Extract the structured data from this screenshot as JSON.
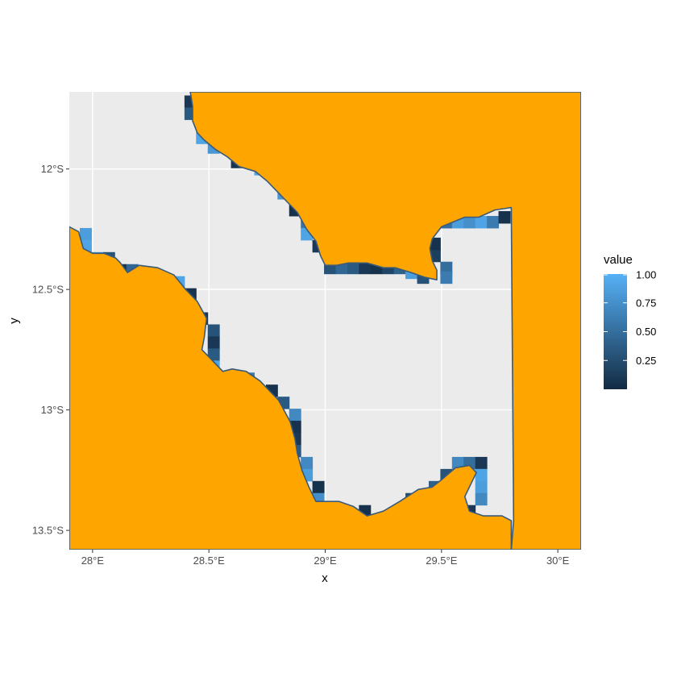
{
  "chart_data": {
    "type": "raster-map",
    "xlabel": "x",
    "ylabel": "y",
    "xlim": [
      27.9,
      30.1
    ],
    "ylim": [
      -13.58,
      -11.68
    ],
    "x_ticks": [
      {
        "value": 28.0,
        "label": "28°E"
      },
      {
        "value": 28.5,
        "label": "28.5°E"
      },
      {
        "value": 29.0,
        "label": "29°E"
      },
      {
        "value": 29.5,
        "label": "29.5°E"
      },
      {
        "value": 30.0,
        "label": "30°E"
      }
    ],
    "y_ticks": [
      {
        "value": -12.0,
        "label": "12°S"
      },
      {
        "value": -12.5,
        "label": "12.5°S"
      },
      {
        "value": -13.0,
        "label": "13°S"
      },
      {
        "value": -13.5,
        "label": "13.5°S"
      }
    ],
    "legend": {
      "title": "value",
      "position": "right",
      "range": [
        0,
        1
      ],
      "ticks": [
        {
          "value": 0.25,
          "label": "0.25"
        },
        {
          "value": 0.5,
          "label": "0.50"
        },
        {
          "value": 0.75,
          "label": "0.75"
        },
        {
          "value": 1.0,
          "label": "1.00"
        }
      ],
      "low_color": "#132B43",
      "high_color": "#56B1F7"
    },
    "colors": {
      "land": "#FFA500",
      "coastline": "#3a5a78",
      "panel": "#EBEBEB",
      "grid": "#FFFFFF",
      "water": "#EEEEEE"
    },
    "land_north": [
      [
        28.42,
        -11.68
      ],
      [
        30.1,
        -11.68
      ],
      [
        30.1,
        -13.58
      ],
      [
        29.8,
        -13.58
      ],
      [
        29.81,
        -13.46
      ],
      [
        29.8,
        -12.16
      ],
      [
        29.73,
        -12.17
      ],
      [
        29.66,
        -12.2
      ],
      [
        29.6,
        -12.2
      ],
      [
        29.55,
        -12.22
      ],
      [
        29.5,
        -12.24
      ],
      [
        29.46,
        -12.29
      ],
      [
        29.45,
        -12.33
      ],
      [
        29.46,
        -12.38
      ],
      [
        29.48,
        -12.42
      ],
      [
        29.48,
        -12.46
      ],
      [
        29.43,
        -12.45
      ],
      [
        29.37,
        -12.43
      ],
      [
        29.3,
        -12.41
      ],
      [
        29.25,
        -12.41
      ],
      [
        29.18,
        -12.39
      ],
      [
        29.1,
        -12.39
      ],
      [
        29.05,
        -12.4
      ],
      [
        29.0,
        -12.4
      ],
      [
        28.98,
        -12.36
      ],
      [
        28.96,
        -12.3
      ],
      [
        28.92,
        -12.25
      ],
      [
        28.88,
        -12.18
      ],
      [
        28.84,
        -12.14
      ],
      [
        28.8,
        -12.1
      ],
      [
        28.75,
        -12.05
      ],
      [
        28.7,
        -12.01
      ],
      [
        28.63,
        -11.99
      ],
      [
        28.58,
        -11.95
      ],
      [
        28.53,
        -11.92
      ],
      [
        28.48,
        -11.88
      ],
      [
        28.45,
        -11.85
      ],
      [
        28.43,
        -11.8
      ],
      [
        28.43,
        -11.74
      ]
    ],
    "land_south": [
      [
        27.9,
        -12.24
      ],
      [
        27.94,
        -12.26
      ],
      [
        27.96,
        -12.33
      ],
      [
        28.0,
        -12.35
      ],
      [
        28.05,
        -12.35
      ],
      [
        28.1,
        -12.37
      ],
      [
        28.12,
        -12.39
      ],
      [
        28.15,
        -12.43
      ],
      [
        28.2,
        -12.4
      ],
      [
        28.28,
        -12.41
      ],
      [
        28.35,
        -12.44
      ],
      [
        28.4,
        -12.5
      ],
      [
        28.45,
        -12.55
      ],
      [
        28.49,
        -12.62
      ],
      [
        28.48,
        -12.7
      ],
      [
        28.47,
        -12.75
      ],
      [
        28.5,
        -12.78
      ],
      [
        28.54,
        -12.82
      ],
      [
        28.56,
        -12.84
      ],
      [
        28.6,
        -12.83
      ],
      [
        28.66,
        -12.84
      ],
      [
        28.72,
        -12.88
      ],
      [
        28.76,
        -12.92
      ],
      [
        28.8,
        -12.96
      ],
      [
        28.85,
        -13.05
      ],
      [
        28.87,
        -13.12
      ],
      [
        28.88,
        -13.18
      ],
      [
        28.9,
        -13.25
      ],
      [
        28.93,
        -13.32
      ],
      [
        28.96,
        -13.38
      ],
      [
        29.0,
        -13.38
      ],
      [
        29.06,
        -13.38
      ],
      [
        29.12,
        -13.4
      ],
      [
        29.18,
        -13.44
      ],
      [
        29.25,
        -13.42
      ],
      [
        29.32,
        -13.38
      ],
      [
        29.4,
        -13.33
      ],
      [
        29.46,
        -13.32
      ],
      [
        29.5,
        -13.29
      ],
      [
        29.56,
        -13.24
      ],
      [
        29.62,
        -13.23
      ],
      [
        29.65,
        -13.26
      ],
      [
        29.63,
        -13.3
      ],
      [
        29.6,
        -13.36
      ],
      [
        29.62,
        -13.42
      ],
      [
        29.68,
        -13.44
      ],
      [
        29.72,
        -13.44
      ],
      [
        29.76,
        -13.44
      ],
      [
        29.8,
        -13.46
      ],
      [
        29.8,
        -13.58
      ],
      [
        27.9,
        -13.58
      ]
    ],
    "cells": [
      {
        "x": 28.42,
        "y": -11.72,
        "v": 0.1
      },
      {
        "x": 28.42,
        "y": -11.77,
        "v": 0.35
      },
      {
        "x": 28.47,
        "y": -11.87,
        "v": 0.9
      },
      {
        "x": 28.52,
        "y": -11.91,
        "v": 0.8
      },
      {
        "x": 28.62,
        "y": -11.97,
        "v": 0.05
      },
      {
        "x": 28.67,
        "y": -11.97,
        "v": 0.7
      },
      {
        "x": 28.72,
        "y": -12.0,
        "v": 0.9
      },
      {
        "x": 28.82,
        "y": -12.1,
        "v": 0.8
      },
      {
        "x": 28.87,
        "y": -12.17,
        "v": 0.05
      },
      {
        "x": 28.92,
        "y": -12.22,
        "v": 0.55
      },
      {
        "x": 28.92,
        "y": -12.27,
        "v": 0.9
      },
      {
        "x": 28.97,
        "y": -12.32,
        "v": 0.1
      },
      {
        "x": 29.02,
        "y": -12.41,
        "v": 0.3
      },
      {
        "x": 29.07,
        "y": -12.41,
        "v": 0.45
      },
      {
        "x": 29.12,
        "y": -12.41,
        "v": 0.35
      },
      {
        "x": 29.17,
        "y": -12.41,
        "v": 0.1
      },
      {
        "x": 29.22,
        "y": -12.41,
        "v": 0.05
      },
      {
        "x": 29.27,
        "y": -12.41,
        "v": 0.2
      },
      {
        "x": 29.32,
        "y": -12.41,
        "v": 0.4
      },
      {
        "x": 29.37,
        "y": -12.43,
        "v": 0.85
      },
      {
        "x": 29.42,
        "y": -12.45,
        "v": 0.3
      },
      {
        "x": 29.52,
        "y": -12.41,
        "v": 0.5
      },
      {
        "x": 29.47,
        "y": -12.36,
        "v": 0.15
      },
      {
        "x": 29.47,
        "y": -12.31,
        "v": 0.05
      },
      {
        "x": 29.52,
        "y": -12.45,
        "v": 0.6
      },
      {
        "x": 29.52,
        "y": -12.22,
        "v": 0.5
      },
      {
        "x": 29.57,
        "y": -12.22,
        "v": 0.85
      },
      {
        "x": 29.62,
        "y": -12.22,
        "v": 0.75
      },
      {
        "x": 29.67,
        "y": -12.22,
        "v": 0.9
      },
      {
        "x": 29.72,
        "y": -12.22,
        "v": 0.6
      },
      {
        "x": 29.77,
        "y": -12.2,
        "v": 0.05
      },
      {
        "x": 27.97,
        "y": -12.27,
        "v": 0.85
      },
      {
        "x": 27.97,
        "y": -12.32,
        "v": 0.9
      },
      {
        "x": 28.02,
        "y": -12.37,
        "v": 0.85
      },
      {
        "x": 28.07,
        "y": -12.37,
        "v": 0.3
      },
      {
        "x": 28.12,
        "y": -12.42,
        "v": 0.05
      },
      {
        "x": 28.17,
        "y": -12.42,
        "v": 0.45
      },
      {
        "x": 28.37,
        "y": -12.47,
        "v": 0.9
      },
      {
        "x": 28.42,
        "y": -12.52,
        "v": 0.05
      },
      {
        "x": 28.47,
        "y": -12.62,
        "v": 0.1
      },
      {
        "x": 28.52,
        "y": -12.67,
        "v": 0.3
      },
      {
        "x": 28.52,
        "y": -12.72,
        "v": 0.1
      },
      {
        "x": 28.52,
        "y": -12.77,
        "v": 0.35
      },
      {
        "x": 28.52,
        "y": -12.82,
        "v": 0.9
      },
      {
        "x": 28.57,
        "y": -12.87,
        "v": 0.05
      },
      {
        "x": 28.62,
        "y": -12.87,
        "v": 0.25
      },
      {
        "x": 28.67,
        "y": -12.87,
        "v": 0.6
      },
      {
        "x": 28.77,
        "y": -12.92,
        "v": 0.05
      },
      {
        "x": 28.82,
        "y": -12.97,
        "v": 0.35
      },
      {
        "x": 28.87,
        "y": -13.02,
        "v": 0.7
      },
      {
        "x": 28.87,
        "y": -13.07,
        "v": 0.05
      },
      {
        "x": 28.87,
        "y": -13.12,
        "v": 0.1
      },
      {
        "x": 28.87,
        "y": -13.17,
        "v": 0.35
      },
      {
        "x": 28.92,
        "y": -13.22,
        "v": 0.7
      },
      {
        "x": 28.92,
        "y": -13.27,
        "v": 0.85
      },
      {
        "x": 28.97,
        "y": -13.32,
        "v": 0.05
      },
      {
        "x": 28.97,
        "y": -13.37,
        "v": 0.75
      },
      {
        "x": 29.02,
        "y": -13.42,
        "v": 0.1
      },
      {
        "x": 29.17,
        "y": -13.42,
        "v": 0.05
      },
      {
        "x": 29.37,
        "y": -13.37,
        "v": 0.25
      },
      {
        "x": 29.42,
        "y": -13.37,
        "v": 0.55
      },
      {
        "x": 29.47,
        "y": -13.32,
        "v": 0.4
      },
      {
        "x": 29.52,
        "y": -13.27,
        "v": 0.3
      },
      {
        "x": 29.57,
        "y": -13.22,
        "v": 0.7
      },
      {
        "x": 29.62,
        "y": -13.22,
        "v": 0.5
      },
      {
        "x": 29.67,
        "y": -13.22,
        "v": 0.1
      },
      {
        "x": 29.67,
        "y": -13.27,
        "v": 0.9
      },
      {
        "x": 29.67,
        "y": -13.32,
        "v": 0.85
      },
      {
        "x": 29.67,
        "y": -13.37,
        "v": 0.7
      },
      {
        "x": 29.62,
        "y": -13.42,
        "v": 0.1
      }
    ]
  }
}
